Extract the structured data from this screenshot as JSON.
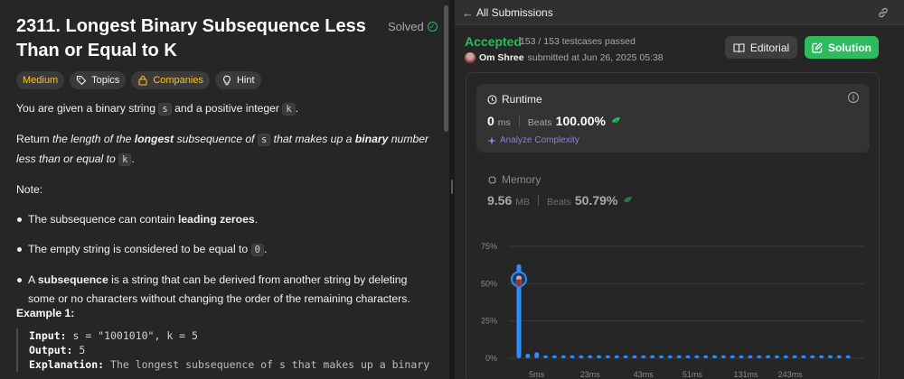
{
  "problem": {
    "title": "2311. Longest Binary Subsequence Less Than or Equal to K",
    "solved_label": "Solved",
    "tags": {
      "difficulty": "Medium",
      "topics": "Topics",
      "companies": "Companies",
      "hint": "Hint"
    },
    "desc1_a": "You are given a binary string ",
    "desc1_s": "s",
    "desc1_b": " and a positive integer ",
    "desc1_k": "k",
    "desc1_c": ".",
    "desc2_a": "Return ",
    "desc2_b": "the length of the ",
    "desc2_c": "longest",
    "desc2_d": " subsequence of ",
    "desc2_s": "s",
    "desc2_e": " that makes up a ",
    "desc2_f": "binary",
    "desc2_g": " number less than or equal to ",
    "desc2_k": "k",
    "desc2_h": ".",
    "note_label": "Note:",
    "bullet1_a": "The subsequence can contain ",
    "bullet1_b": "leading zeroes",
    "bullet1_c": ".",
    "bullet2_a": "The empty string is considered to be equal to ",
    "bullet2_code": "0",
    "bullet2_b": ".",
    "bullet3_a": "A ",
    "bullet3_b": "subsequence",
    "bullet3_c": " is a string that can be derived from another string by deleting some or no characters without changing the order of the remaining characters.",
    "example_title": "Example 1:",
    "ex_input_label": "Input:",
    "ex_input_val": " s = \"1001010\", k = 5",
    "ex_output_label": "Output:",
    "ex_output_val": " 5",
    "ex_expl_label": "Explanation:",
    "ex_expl_val": " The longest subsequence of s that makes up a binary"
  },
  "submission": {
    "back_arrow": "←",
    "header_title": "All Submissions",
    "status": "Accepted",
    "testcases": "153 / 153 testcases passed",
    "author": "Om Shree",
    "submitted_text": "submitted at Jun 26, 2025 05:38",
    "editorial_label": "Editorial",
    "solution_label": "Solution",
    "runtime": {
      "title": "Runtime",
      "value": "0",
      "unit": "ms",
      "beats_label": "Beats",
      "beats_value": "100.00%",
      "analyze_label": "Analyze Complexity"
    },
    "memory": {
      "title": "Memory",
      "value": "9.56",
      "unit": "MB",
      "beats_label": "Beats",
      "beats_value": "50.79%"
    }
  },
  "colors": {
    "accent_green": "#2cbb5d",
    "accent_yellow": "#ffc01e",
    "bar_blue": "#2d8cff",
    "purple": "#8a7ce6"
  },
  "chart_data": {
    "type": "bar",
    "ylim": [
      0,
      75
    ],
    "yticks": [
      "75%",
      "50%",
      "25%",
      "0%"
    ],
    "ytick_values": [
      75,
      50,
      25,
      0
    ],
    "xtick_labels": [
      "5ms",
      "23ms",
      "43ms",
      "51ms",
      "131ms",
      "243ms"
    ],
    "values": [
      63,
      3,
      4,
      2,
      2,
      2,
      2,
      2,
      2,
      2,
      2,
      2,
      2,
      2,
      2,
      2,
      2,
      2,
      2,
      2,
      2,
      2,
      2,
      2,
      2,
      2,
      2,
      2,
      2,
      2,
      2,
      2,
      2,
      2,
      2,
      2,
      2,
      2
    ],
    "highlight_index": 0
  }
}
